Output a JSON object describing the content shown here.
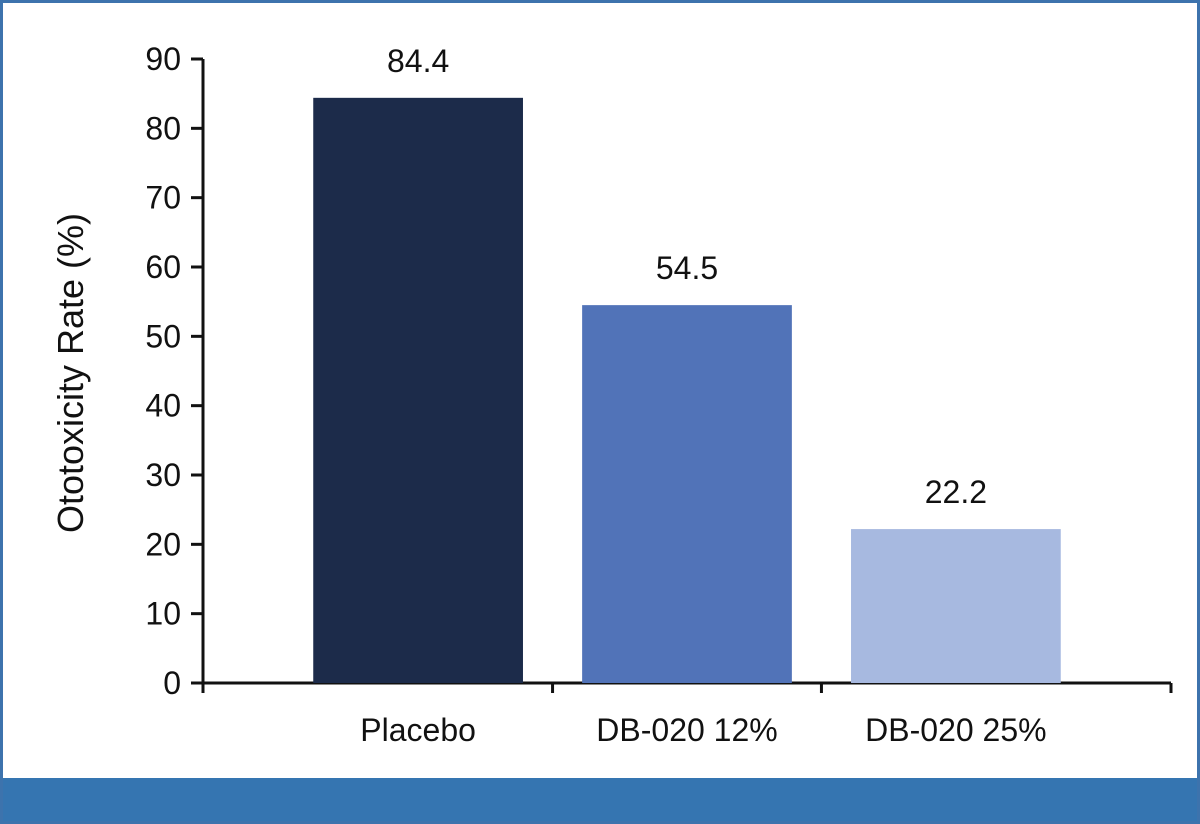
{
  "chart_data": {
    "type": "bar",
    "title": "",
    "xlabel": "",
    "ylabel": "Ototoxicity Rate (%)",
    "categories": [
      "Placebo",
      "DB-020 12%",
      "DB-020 25%"
    ],
    "values": [
      84.4,
      54.5,
      22.2
    ],
    "value_labels": [
      "84.4",
      "54.5",
      "22.2"
    ],
    "ylim": [
      0,
      90
    ],
    "yticks": [
      0,
      10,
      20,
      30,
      40,
      50,
      60,
      70,
      80,
      90
    ],
    "ytick_labels": [
      "0",
      "10",
      "20",
      "30",
      "40",
      "50",
      "60",
      "70",
      "80",
      "90"
    ],
    "grid": false,
    "legend": "none",
    "colors": [
      "#1c2b4a",
      "#5173b8",
      "#a7b9e0"
    ]
  },
  "theme": {
    "frame_color": "#3d73ad",
    "band_color": "#3575b1",
    "axis_color": "#111111"
  }
}
